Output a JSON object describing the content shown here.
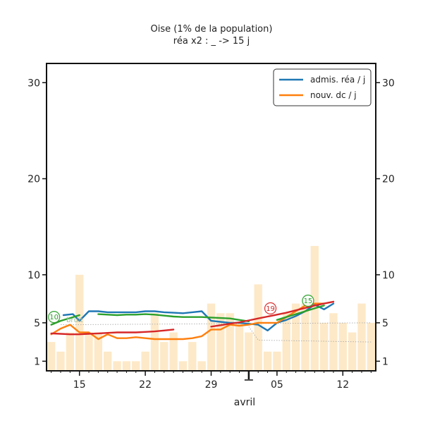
{
  "chart_data": {
    "type": "line",
    "title": "Oise (1% de la population)",
    "subtitle": "réa x2 : _ -> 15 j",
    "xlabel": "avril",
    "ylabel": "",
    "ylim": [
      0,
      32
    ],
    "yticks": [
      1,
      5,
      10,
      20,
      30
    ],
    "xticks": [
      {
        "day": 15,
        "label": "15"
      },
      {
        "day": 22,
        "label": "22"
      },
      {
        "day": 29,
        "label": "29"
      },
      {
        "day": 36,
        "label": "05"
      },
      {
        "day": 43,
        "label": "12"
      }
    ],
    "xrange": [
      11.5,
      46.5
    ],
    "month_marker_day": 33,
    "grid": false,
    "legend_position": "top-right",
    "bar_color": "#fde9c8",
    "bars": {
      "days": [
        12,
        13,
        14,
        15,
        16,
        17,
        18,
        19,
        20,
        21,
        22,
        23,
        24,
        25,
        26,
        27,
        28,
        29,
        30,
        31,
        32,
        33,
        34,
        35,
        36,
        37,
        38,
        39,
        40,
        41,
        42,
        43,
        44,
        45,
        46
      ],
      "values": [
        3,
        2,
        4,
        10,
        4,
        4,
        2,
        1,
        1,
        1,
        2,
        6,
        3,
        4,
        1,
        3,
        1,
        7,
        6,
        6,
        5,
        4,
        9,
        2,
        2,
        6,
        7,
        7,
        13,
        5,
        6,
        5,
        4,
        7,
        5
      ]
    },
    "series": [
      {
        "name": "admis. réa / j",
        "color": "#1f77b4",
        "segments": [
          [
            [
              13.3,
              5.8
            ],
            [
              14.3,
              5.9
            ],
            [
              15,
              5.2
            ],
            [
              16,
              6.2
            ],
            [
              17,
              6.2
            ],
            [
              18,
              6.1
            ],
            [
              19,
              6.1
            ],
            [
              20,
              6.1
            ],
            [
              21,
              6.1
            ],
            [
              22,
              6.2
            ],
            [
              23,
              6.2
            ],
            [
              24,
              6.1
            ],
            [
              25,
              6.05
            ],
            [
              26,
              6.0
            ],
            [
              27,
              6.1
            ],
            [
              28,
              6.2
            ],
            [
              29,
              5.2
            ],
            [
              30,
              5.1
            ],
            [
              31,
              5.0
            ],
            [
              32,
              5.0
            ],
            [
              33,
              4.9
            ],
            [
              34,
              4.8
            ],
            [
              35,
              4.2
            ],
            [
              36,
              5.0
            ],
            [
              37,
              5.3
            ],
            [
              38,
              5.7
            ],
            [
              39,
              6.2
            ],
            [
              40,
              6.9
            ],
            [
              41,
              6.4
            ],
            [
              42,
              7.0
            ]
          ]
        ]
      },
      {
        "name": "nouv. dc / j",
        "color": "#ff7f0e",
        "segments": [
          [
            [
              12,
              3.8
            ],
            [
              13,
              4.4
            ],
            [
              14,
              4.8
            ],
            [
              15,
              4.0
            ],
            [
              16,
              4.0
            ],
            [
              17,
              3.3
            ],
            [
              18,
              3.8
            ],
            [
              19,
              3.4
            ],
            [
              20,
              3.4
            ],
            [
              21,
              3.5
            ],
            [
              22,
              3.4
            ],
            [
              23,
              3.3
            ],
            [
              24,
              3.3
            ],
            [
              25,
              3.3
            ],
            [
              26,
              3.3
            ],
            [
              27,
              3.4
            ],
            [
              28,
              3.6
            ],
            [
              29,
              4.3
            ],
            [
              30,
              4.3
            ],
            [
              31,
              4.8
            ],
            [
              32,
              4.7
            ],
            [
              33,
              4.8
            ],
            [
              34,
              5.0
            ],
            [
              35,
              5.0
            ],
            [
              36,
              5.0
            ],
            [
              37,
              5.6
            ],
            [
              38,
              6.2
            ],
            [
              39,
              6.8
            ],
            [
              40,
              7.0
            ],
            [
              41,
              7.0
            ]
          ]
        ]
      },
      {
        "color": "#2ca02c",
        "segments": [
          [
            [
              12,
              4.8
            ],
            [
              13,
              5.2
            ],
            [
              14,
              5.5
            ],
            [
              15,
              5.8
            ]
          ],
          [
            [
              17,
              5.9
            ],
            [
              18,
              5.85
            ],
            [
              19,
              5.8
            ],
            [
              20,
              5.85
            ],
            [
              21,
              5.85
            ],
            [
              22,
              5.9
            ],
            [
              23,
              5.85
            ],
            [
              24,
              5.75
            ],
            [
              25,
              5.65
            ],
            [
              26,
              5.6
            ],
            [
              27,
              5.6
            ],
            [
              28,
              5.6
            ],
            [
              29,
              5.55
            ],
            [
              30,
              5.5
            ],
            [
              31,
              5.45
            ],
            [
              32,
              5.3
            ],
            [
              33,
              5.15
            ]
          ],
          [
            [
              36,
              5.3
            ],
            [
              37,
              5.6
            ],
            [
              38,
              5.9
            ],
            [
              39,
              6.2
            ],
            [
              40,
              6.5
            ],
            [
              41,
              6.8
            ]
          ]
        ]
      },
      {
        "color": "#d62728",
        "segments": [
          [
            [
              12,
              3.9
            ],
            [
              13,
              3.85
            ],
            [
              14,
              3.8
            ],
            [
              15,
              3.8
            ],
            [
              16,
              3.85
            ],
            [
              17,
              3.9
            ],
            [
              18,
              3.95
            ],
            [
              19,
              4.0
            ],
            [
              20,
              4.0
            ],
            [
              21,
              4.0
            ],
            [
              22,
              4.05
            ],
            [
              23,
              4.1
            ],
            [
              24,
              4.2
            ],
            [
              25,
              4.3
            ]
          ],
          [
            [
              29,
              4.6
            ],
            [
              30,
              4.75
            ],
            [
              31,
              4.9
            ],
            [
              32,
              5.05
            ],
            [
              33,
              5.25
            ],
            [
              34,
              5.45
            ],
            [
              35,
              5.65
            ],
            [
              36,
              5.85
            ],
            [
              37,
              6.05
            ],
            [
              38,
              6.3
            ],
            [
              39,
              6.55
            ],
            [
              40,
              6.8
            ],
            [
              41,
              7.0
            ],
            [
              42,
              7.2
            ]
          ]
        ]
      }
    ],
    "reference_lines": [
      {
        "color": "#aaaaaa",
        "points": [
          [
            13,
            4.8
          ],
          [
            46,
            5.0
          ]
        ]
      },
      {
        "color": "#aaaaaa",
        "points": [
          [
            33,
            4.6
          ],
          [
            34,
            3.2
          ],
          [
            46,
            3.0
          ]
        ]
      }
    ],
    "annotations": [
      {
        "label": "10",
        "day": 12.3,
        "value": 5.6,
        "color": "#2ca02c"
      },
      {
        "label": "bruit",
        "day": 13.6,
        "value": 5.3,
        "color": "#9cbf9c"
      },
      {
        "label": "19",
        "day": 35.3,
        "value": 6.5,
        "color": "#d62728"
      },
      {
        "label": "15",
        "day": 39.3,
        "value": 7.3,
        "color": "#2ca02c"
      }
    ]
  }
}
